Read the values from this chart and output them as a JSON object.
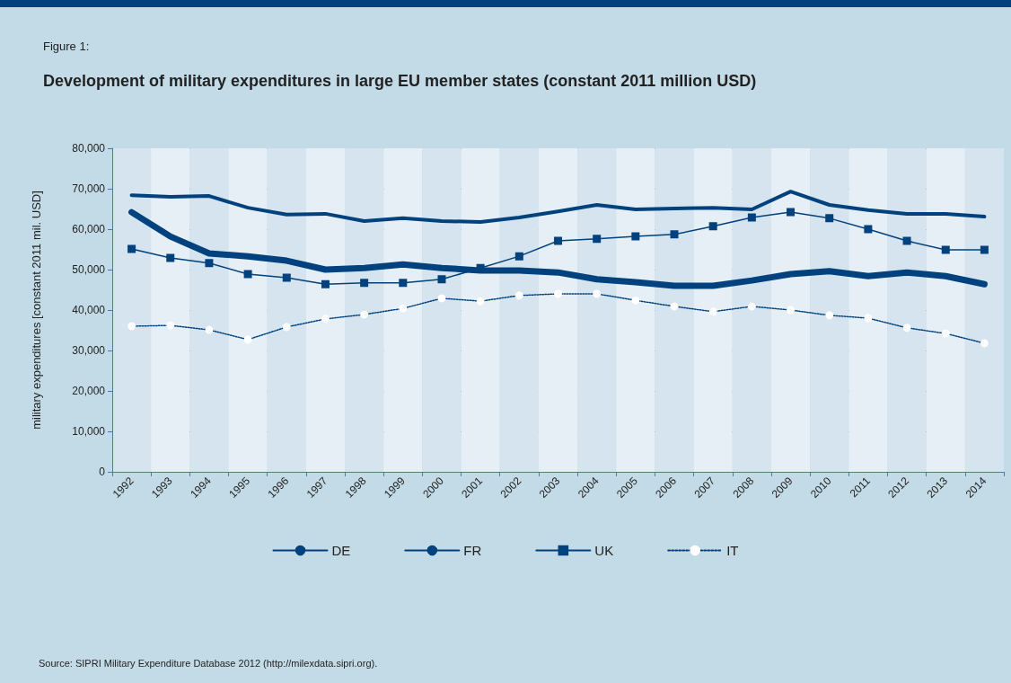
{
  "chart_data": {
    "type": "line",
    "subtitle": "Figure 1:",
    "title": "Development of military expenditures in large EU member states (constant 2011 million USD)",
    "ylabel": "military expenditures [constant 2011 mil. USD]",
    "categories": [
      "1992",
      "1993",
      "1994",
      "1995",
      "1996",
      "1997",
      "1998",
      "1999",
      "2000",
      "2001",
      "2002",
      "2003",
      "2004",
      "2005",
      "2006",
      "2007",
      "2008",
      "2009",
      "2010",
      "2011",
      "2012",
      "2013",
      "2014"
    ],
    "series": [
      {
        "name": "DE",
        "color": "#00427e",
        "line_style": "solid",
        "marker": "none",
        "values": [
          64200,
          58200,
          54000,
          53300,
          52200,
          50000,
          50400,
          51300,
          50400,
          49800,
          49800,
          49300,
          47600,
          46900,
          46000,
          46000,
          47300,
          48900,
          49600,
          48400,
          49300,
          48400,
          46400
        ]
      },
      {
        "name": "FR",
        "color": "#00427e",
        "line_style": "solid",
        "marker": "none",
        "values": [
          68400,
          68000,
          68200,
          65300,
          63600,
          63800,
          62000,
          62700,
          62000,
          61800,
          62900,
          64400,
          66000,
          64900,
          65100,
          65300,
          64900,
          69300,
          66000,
          64700,
          63800,
          63800,
          63100
        ]
      },
      {
        "name": "UK",
        "color": "#00427e",
        "line_style": "solid",
        "marker": "square",
        "values": [
          55100,
          52900,
          51600,
          48900,
          48000,
          46400,
          46700,
          46700,
          47600,
          50400,
          53300,
          57100,
          57600,
          58200,
          58700,
          60700,
          62900,
          64200,
          62700,
          60000,
          57100,
          54900,
          54900
        ]
      },
      {
        "name": "IT",
        "color": "#00427e",
        "line_style": "dotted",
        "marker": "circle",
        "values": [
          36000,
          36200,
          35100,
          32700,
          35800,
          37800,
          38900,
          40400,
          42900,
          42200,
          43600,
          44000,
          44000,
          42400,
          40900,
          39600,
          40900,
          40000,
          38700,
          38000,
          35600,
          34200,
          31800
        ]
      }
    ],
    "ylim": [
      0,
      80000
    ],
    "yticks": [
      0,
      {
        "value": 10000,
        "label": "10,000"
      },
      {
        "value": 20000,
        "label": "20,000"
      },
      {
        "value": 30000,
        "label": "30,000"
      },
      {
        "value": 40000,
        "label": "40,000"
      },
      {
        "value": 50000,
        "label": "50,000"
      },
      {
        "value": 60000,
        "label": "60,000"
      },
      {
        "value": 70000,
        "label": "70,000"
      },
      {
        "value": 80000,
        "label": "80,000"
      }
    ],
    "grid": "y",
    "legend": "bottom",
    "annotations": [
      "Source: SIPRI Military Expenditure Database 2012 (http://milexdata.sipri.org)."
    ]
  }
}
